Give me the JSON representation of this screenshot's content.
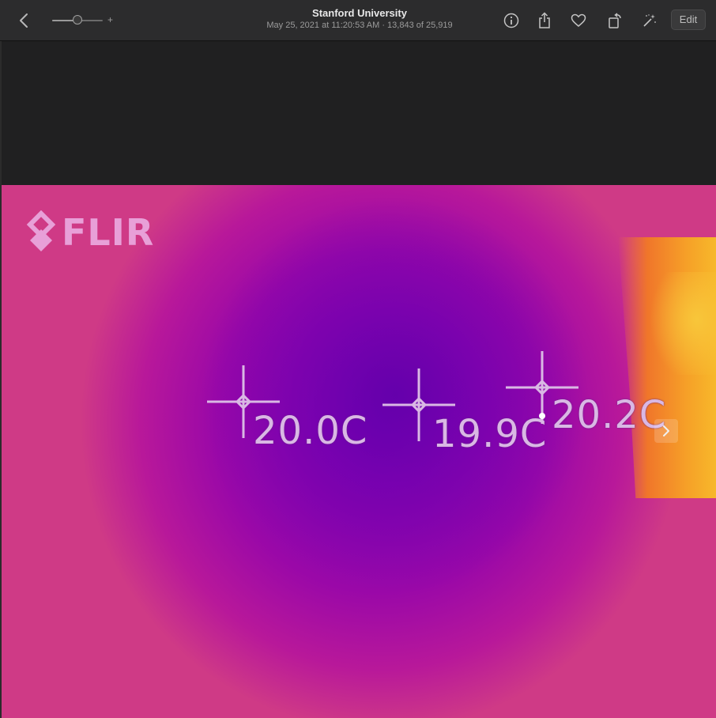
{
  "toolbar": {
    "title": "Stanford University",
    "subtitle": "May 25, 2021 at 11:20:53 AM  ·  13,843 of 25,919",
    "zoom_plus": "+",
    "zoom_level": 0.5,
    "edit_label": "Edit",
    "icons": [
      "back-icon",
      "info-icon",
      "share-icon",
      "heart-icon",
      "rotate-icon",
      "magic-wand-icon"
    ]
  },
  "photo": {
    "logo_text": "FLIR",
    "readings": [
      "20.0C",
      "19.9C",
      "20.2C"
    ]
  },
  "colors": {
    "toolbar_bg": "#2c2c2d",
    "cold": "#7a00b4",
    "warm": "#c73a86",
    "hot": "#f6a028",
    "overlay_text": "#d9b8e4"
  }
}
